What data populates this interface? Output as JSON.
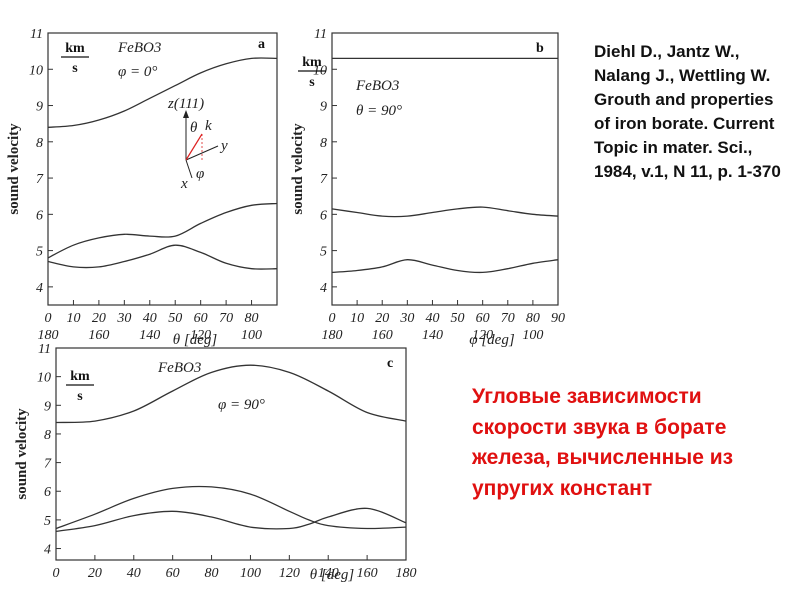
{
  "reference_text": "Diehl D., Jantz W., Nalang J., Wettling W. Grouth and properties of iron borate. Current Topic in mater. Sci., 1984, v.1, N 11, p. 1-370",
  "caption_text": "Угловые зависимости скорости звука в борате железа, вычисленные из упругих констант",
  "inset": {
    "z_label": "z(111)",
    "theta": "θ",
    "k": "k",
    "y": "y",
    "x": "x",
    "phi": "φ",
    "color_k": "#dd2222"
  },
  "chart_data": [
    {
      "id": "a",
      "type": "line",
      "panel_letter": "a",
      "material": "FeBO3",
      "condition": "φ = 0°",
      "ylabel": "sound velocity",
      "unit_num": "km",
      "unit_den": "s",
      "xlabel": "θ [deg]",
      "xlim": [
        0,
        90
      ],
      "ylim": [
        3.5,
        11
      ],
      "y_ticks": [
        4,
        5,
        6,
        7,
        8,
        9,
        10,
        11
      ],
      "x_ticks": [
        0,
        10,
        20,
        30,
        40,
        50,
        60,
        70,
        80
      ],
      "x_ticks2": [
        180,
        160,
        140,
        120,
        100
      ],
      "x_ticks2_values": [
        0,
        20,
        40,
        60,
        80
      ],
      "series": [
        {
          "x": [
            0,
            10,
            20,
            30,
            40,
            50,
            60,
            70,
            80,
            90
          ],
          "y": [
            8.4,
            8.45,
            8.6,
            8.85,
            9.2,
            9.55,
            9.9,
            10.15,
            10.3,
            10.3
          ]
        },
        {
          "x": [
            0,
            10,
            20,
            30,
            40,
            50,
            60,
            70,
            80,
            90
          ],
          "y": [
            4.8,
            5.15,
            5.35,
            5.45,
            5.4,
            5.4,
            5.75,
            6.05,
            6.25,
            6.3
          ]
        },
        {
          "x": [
            0,
            10,
            20,
            30,
            40,
            50,
            60,
            70,
            80,
            90
          ],
          "y": [
            4.7,
            4.55,
            4.55,
            4.7,
            4.9,
            5.15,
            4.95,
            4.65,
            4.5,
            4.5
          ]
        }
      ]
    },
    {
      "id": "b",
      "type": "line",
      "panel_letter": "b",
      "material": "FeBO3",
      "condition": "θ = 90°",
      "ylabel": "sound velocity",
      "unit_num": "km",
      "unit_den": "s",
      "xlabel": "φ [deg]",
      "xlim": [
        0,
        90
      ],
      "ylim": [
        3.5,
        11
      ],
      "y_ticks": [
        4,
        5,
        6,
        7,
        8,
        9,
        10,
        11
      ],
      "x_ticks": [
        0,
        10,
        20,
        30,
        40,
        50,
        60,
        70,
        80,
        90
      ],
      "x_ticks2": [
        180,
        160,
        140,
        120,
        100
      ],
      "x_ticks2_values": [
        0,
        20,
        40,
        60,
        80
      ],
      "series": [
        {
          "x": [
            0,
            30,
            60,
            90
          ],
          "y": [
            10.3,
            10.3,
            10.3,
            10.3
          ]
        },
        {
          "x": [
            0,
            10,
            20,
            30,
            40,
            50,
            60,
            70,
            80,
            90
          ],
          "y": [
            6.15,
            6.05,
            5.95,
            5.95,
            6.05,
            6.15,
            6.2,
            6.1,
            6.0,
            5.95
          ]
        },
        {
          "x": [
            0,
            10,
            20,
            30,
            40,
            50,
            60,
            70,
            80,
            90
          ],
          "y": [
            4.4,
            4.45,
            4.55,
            4.75,
            4.6,
            4.45,
            4.4,
            4.5,
            4.65,
            4.75
          ]
        }
      ]
    },
    {
      "id": "c",
      "type": "line",
      "panel_letter": "c",
      "material": "FeBO3",
      "condition": "φ = 90°",
      "ylabel": "sound velocity",
      "unit_num": "km",
      "unit_den": "s",
      "xlabel": "θ [deg]",
      "xlim": [
        0,
        180
      ],
      "ylim": [
        3.6,
        11
      ],
      "y_ticks": [
        4,
        5,
        6,
        7,
        8,
        9,
        10,
        11
      ],
      "x_ticks": [
        0,
        20,
        40,
        60,
        80,
        100,
        120,
        140,
        160,
        180
      ],
      "series": [
        {
          "x": [
            0,
            20,
            40,
            60,
            80,
            100,
            120,
            140,
            160,
            180
          ],
          "y": [
            8.4,
            8.45,
            8.8,
            9.5,
            10.15,
            10.4,
            10.15,
            9.5,
            8.75,
            8.45
          ]
        },
        {
          "x": [
            0,
            20,
            40,
            60,
            80,
            100,
            120,
            130,
            140,
            160,
            180
          ],
          "y": [
            4.7,
            5.2,
            5.75,
            6.1,
            6.15,
            5.9,
            5.3,
            5.0,
            4.8,
            4.7,
            4.75
          ]
        },
        {
          "x": [
            0,
            20,
            40,
            60,
            80,
            100,
            120,
            130,
            140,
            160,
            180
          ],
          "y": [
            4.6,
            4.8,
            5.15,
            5.3,
            5.1,
            4.75,
            4.7,
            4.85,
            5.1,
            5.4,
            4.9
          ]
        }
      ]
    }
  ]
}
